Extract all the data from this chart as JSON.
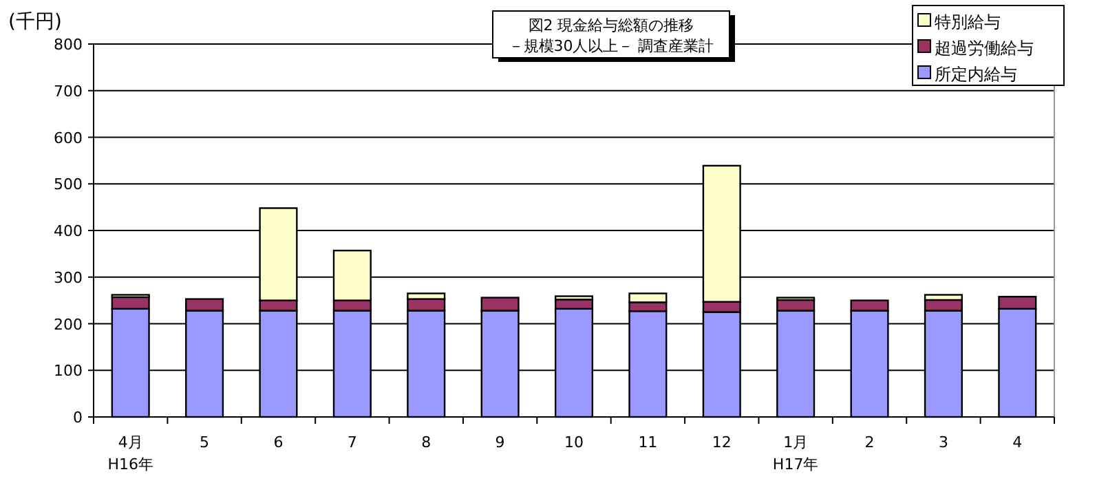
{
  "chart_data": {
    "type": "bar",
    "stacked": true,
    "title": "図2  現金給与総額の推移",
    "subtitle": "－規模30人以上－  調査産業計",
    "ylabel": "(千円)",
    "categories": [
      "4月\nH16年",
      "5",
      "6",
      "7",
      "8",
      "9",
      "10",
      "11",
      "12",
      "1月\nH17年",
      "2",
      "3",
      "4"
    ],
    "series": [
      {
        "name": "所定内給与",
        "color": "#9999ff",
        "values": [
          232,
          228,
          228,
          228,
          228,
          228,
          232,
          227,
          225,
          228,
          228,
          228,
          232
        ]
      },
      {
        "name": "超過労働給与",
        "color": "#993366",
        "values": [
          25,
          25,
          22,
          22,
          25,
          28,
          20,
          19,
          22,
          23,
          22,
          23,
          26
        ]
      },
      {
        "name": "特別給与",
        "color": "#ffffcc",
        "values": [
          5,
          0,
          198,
          107,
          12,
          0,
          7,
          19,
          292,
          5,
          0,
          11,
          0
        ]
      }
    ],
    "ylim": [
      0,
      800
    ],
    "yticks": [
      0,
      100,
      200,
      300,
      400,
      500,
      600,
      700,
      800
    ],
    "grid": "y",
    "legend": "top right"
  }
}
